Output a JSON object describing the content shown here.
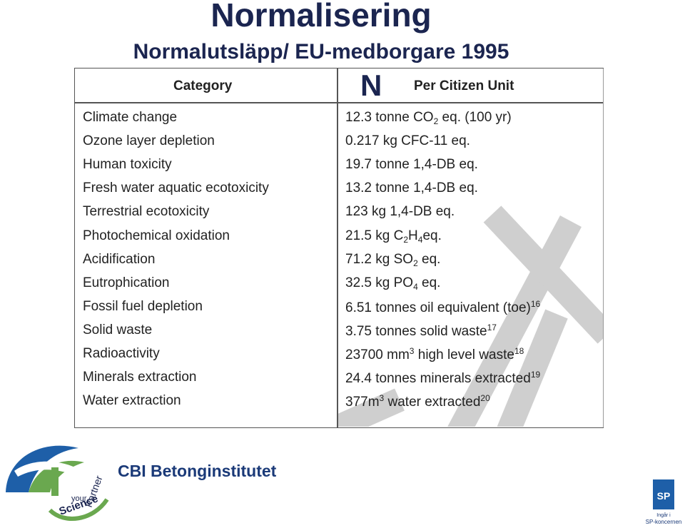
{
  "title": "Normalisering",
  "subtitle": "Normalutsläpp/ EU-medborgare 1995",
  "overlay_letter": "N",
  "table": {
    "headers": [
      "Category",
      "Per Citizen Unit"
    ],
    "rows": [
      {
        "category": "Climate change",
        "unit": [
          "12.3 tonne CO",
          {
            "sub": "2"
          },
          " eq. (100 yr)"
        ]
      },
      {
        "category": "Ozone layer depletion",
        "unit": [
          "0.217 kg CFC-11 eq."
        ]
      },
      {
        "category": "Human toxicity",
        "unit": [
          "19.7 tonne 1,4-DB eq."
        ]
      },
      {
        "category": "Fresh water aquatic ecotoxicity",
        "unit": [
          "13.2 tonne 1,4-DB eq."
        ]
      },
      {
        "category": "Terrestrial ecotoxicity",
        "unit": [
          "123 kg 1,4-DB eq."
        ]
      },
      {
        "category": "Photochemical oxidation",
        "unit": [
          "21.5 kg C",
          {
            "sub": "2"
          },
          "H",
          {
            "sub": "4"
          },
          "eq."
        ]
      },
      {
        "category": "Acidification",
        "unit": [
          "71.2 kg SO",
          {
            "sub": "2"
          },
          " eq."
        ]
      },
      {
        "category": "Eutrophication",
        "unit": [
          "32.5 kg PO",
          {
            "sub": "4"
          },
          " eq."
        ]
      },
      {
        "category": "Fossil fuel depletion",
        "unit": [
          "6.51 tonnes oil equivalent (toe)",
          {
            "sup": "16"
          }
        ]
      },
      {
        "category": "Solid waste",
        "unit": [
          "3.75 tonnes solid waste",
          {
            "sup": "17"
          }
        ]
      },
      {
        "category": "Radioactivity",
        "unit": [
          "23700 mm",
          {
            "sup": "3"
          },
          " high level waste",
          {
            "sup": "18"
          }
        ]
      },
      {
        "category": "Minerals extraction",
        "unit": [
          "24.4 tonnes minerals extracted",
          {
            "sup": "19"
          }
        ]
      },
      {
        "category": "Water extraction",
        "unit": [
          "377m",
          {
            "sup": "3"
          },
          " water extracted",
          {
            "sup": "20"
          }
        ]
      }
    ]
  },
  "footer": {
    "cbi": "CBI Betonginstitutet",
    "tagline": [
      "your",
      "Science",
      "Partner"
    ],
    "sp": "SP",
    "sp_note": [
      "Ingår i",
      "SP-koncernen"
    ]
  }
}
